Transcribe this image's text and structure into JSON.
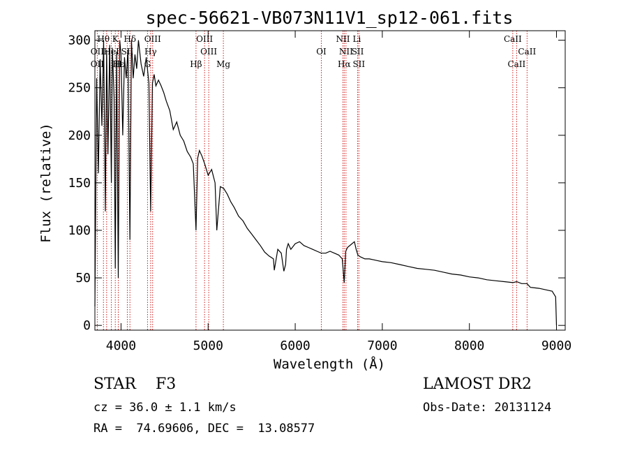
{
  "chart_data": {
    "type": "line",
    "title": "spec-56621-VB073N11V1_sp12-061.fits",
    "xlabel": "Wavelength (Å)",
    "ylabel": "Flux (relative)",
    "xlim": [
      3700,
      9100
    ],
    "ylim": [
      -5,
      310
    ],
    "x_ticks": [
      4000,
      5000,
      6000,
      7000,
      8000,
      9000
    ],
    "y_ticks": [
      0,
      50,
      100,
      150,
      200,
      250,
      300
    ],
    "grid": false,
    "series": [
      {
        "x": [
          3700,
          3720,
          3740,
          3760,
          3780,
          3800,
          3820,
          3835,
          3850,
          3870,
          3889,
          3900,
          3920,
          3934,
          3950,
          3968,
          3985,
          4000,
          4020,
          4040,
          4060,
          4080,
          4102,
          4120,
          4140,
          4160,
          4180,
          4200,
          4230,
          4260,
          4290,
          4320,
          4340,
          4361,
          4380,
          4400,
          4430,
          4460,
          4490,
          4520,
          4560,
          4600,
          4640,
          4680,
          4720,
          4760,
          4800,
          4830,
          4861,
          4880,
          4900,
          4930,
          4960,
          5000,
          5040,
          5080,
          5100,
          5140,
          5180,
          5220,
          5260,
          5300,
          5350,
          5400,
          5450,
          5500,
          5550,
          5600,
          5650,
          5700,
          5750,
          5760,
          5800,
          5840,
          5870,
          5890,
          5900,
          5920,
          5950,
          6000,
          6050,
          6100,
          6150,
          6200,
          6250,
          6300,
          6350,
          6400,
          6450,
          6500,
          6540,
          6563,
          6580,
          6600,
          6640,
          6680,
          6700,
          6720,
          6750,
          6800,
          6850,
          6900,
          6950,
          7000,
          7100,
          7200,
          7300,
          7400,
          7500,
          7600,
          7700,
          7800,
          7900,
          8000,
          8100,
          8200,
          8300,
          8400,
          8500,
          8542,
          8600,
          8662,
          8700,
          8800,
          8900,
          8950,
          8990,
          9000
        ],
        "y": [
          20,
          260,
          160,
          280,
          210,
          300,
          120,
          290,
          180,
          295,
          150,
          292,
          240,
          60,
          288,
          50,
          300,
          285,
          200,
          282,
          260,
          290,
          90,
          300,
          260,
          285,
          270,
          300,
          275,
          262,
          282,
          255,
          120,
          255,
          264,
          252,
          258,
          252,
          245,
          236,
          226,
          206,
          214,
          200,
          194,
          183,
          177,
          170,
          100,
          176,
          184,
          178,
          170,
          158,
          164,
          150,
          100,
          146,
          144,
          138,
          130,
          124,
          115,
          110,
          102,
          96,
          90,
          84,
          77,
          73,
          70,
          58,
          80,
          76,
          57,
          64,
          80,
          86,
          80,
          86,
          88,
          84,
          82,
          80,
          78,
          76,
          76,
          78,
          76,
          74,
          70,
          45,
          78,
          82,
          85,
          88,
          80,
          74,
          72,
          70,
          70,
          69,
          68,
          67,
          66,
          64,
          62,
          60,
          59,
          58,
          56,
          54,
          53,
          51,
          50,
          48,
          47,
          46,
          45,
          46,
          44,
          44,
          40,
          39,
          37,
          36,
          30,
          0
        ]
      }
    ],
    "line_labels": [
      {
        "name": "Hθ",
        "x": 3798
      },
      {
        "name": "K",
        "x": 3934
      },
      {
        "name": "Hδ",
        "x": 4102
      },
      {
        "name": "OIII",
        "x": 4363
      },
      {
        "name": "OIII",
        "x": 4959
      },
      {
        "name": "NII",
        "x": 6548
      },
      {
        "name": "Li",
        "x": 6708
      },
      {
        "name": "CaII",
        "x": 8498
      },
      {
        "name": "OII",
        "x": 3727
      },
      {
        "name": "HeI",
        "x": 3889
      },
      {
        "name": "SII",
        "x": 4072
      },
      {
        "name": "Hγ",
        "x": 4340
      },
      {
        "name": "OIII",
        "x": 5007
      },
      {
        "name": "OI",
        "x": 6300
      },
      {
        "name": "NII",
        "x": 6583
      },
      {
        "name": "SII",
        "x": 6717
      },
      {
        "name": "CaII",
        "x": 8662
      },
      {
        "name": "OII",
        "x": 3727
      },
      {
        "name": "Hε",
        "x": 3970
      },
      {
        "name": "H",
        "x": 3968
      },
      {
        "name": "G",
        "x": 4304
      },
      {
        "name": "Hβ",
        "x": 4861
      },
      {
        "name": "Mg",
        "x": 5175
      },
      {
        "name": "Hα",
        "x": 6563
      },
      {
        "name": "SII",
        "x": 6731
      },
      {
        "name": "CaII",
        "x": 8542
      }
    ],
    "line_markers_x": [
      3727,
      3798,
      3835,
      3889,
      3934,
      3968,
      4072,
      4102,
      4304,
      4340,
      4363,
      4861,
      4959,
      5007,
      5175,
      6300,
      6548,
      6563,
      6583,
      6717,
      6731,
      8498,
      8542,
      8662
    ],
    "marker_color": "#cc0000"
  },
  "footer": {
    "object": "STAR    F3",
    "cz": "cz = 36.0 ± 1.1 km/s",
    "coords": "RA =  74.69606, DEC =  13.08577",
    "survey": "LAMOST DR2",
    "obs_date": "Obs-Date: 20131124"
  }
}
